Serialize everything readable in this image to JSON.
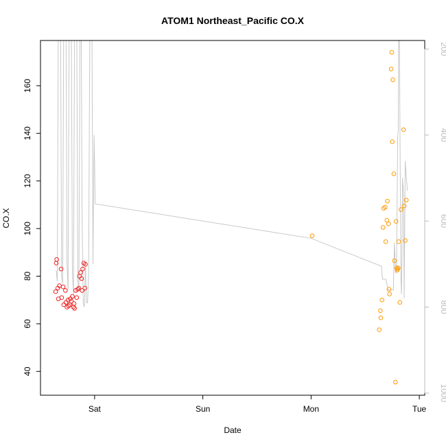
{
  "chart_data": {
    "type": "scatter",
    "title": "ATOM1 Northeast_Pacific CO.X",
    "xlabel": "Date",
    "ylabel": "CO.X",
    "xlim": [
      -0.5,
      3.05
    ],
    "ylim": [
      30,
      179
    ],
    "x_ticks": [
      {
        "value": 0,
        "label": "Sat"
      },
      {
        "value": 1,
        "label": "Sun"
      },
      {
        "value": 2,
        "label": "Mon"
      },
      {
        "value": 3,
        "label": "Tue"
      }
    ],
    "y_ticks": [
      40,
      60,
      80,
      100,
      120,
      140,
      160
    ],
    "secondary_axis": {
      "label": "",
      "ticks": [
        200,
        400,
        600,
        800,
        1000
      ],
      "range": [
        180,
        1005
      ],
      "reversed": true,
      "color": "#bbbbbb"
    },
    "colors": {
      "series1": "#ee2222",
      "series2": "#ff9900",
      "line": "#c8c8c8",
      "frame": "#000000"
    },
    "series": [
      {
        "color": "#ee2222",
        "points": [
          [
            -0.36,
            73.5
          ],
          [
            -0.355,
            85.5
          ],
          [
            -0.35,
            87
          ],
          [
            -0.34,
            75
          ],
          [
            -0.335,
            70.5
          ],
          [
            -0.325,
            76
          ],
          [
            -0.31,
            83
          ],
          [
            -0.305,
            71
          ],
          [
            -0.29,
            75.5
          ],
          [
            -0.285,
            68
          ],
          [
            -0.27,
            74
          ],
          [
            -0.265,
            69
          ],
          [
            -0.255,
            67
          ],
          [
            -0.245,
            70
          ],
          [
            -0.24,
            67.5
          ],
          [
            -0.23,
            68
          ],
          [
            -0.225,
            70.5
          ],
          [
            -0.215,
            69.5
          ],
          [
            -0.205,
            71.5
          ],
          [
            -0.195,
            67
          ],
          [
            -0.19,
            68.5
          ],
          [
            -0.185,
            66.5
          ],
          [
            -0.175,
            74
          ],
          [
            -0.165,
            71
          ],
          [
            -0.155,
            74.5
          ],
          [
            -0.145,
            75
          ],
          [
            -0.14,
            80
          ],
          [
            -0.13,
            81.5
          ],
          [
            -0.12,
            79
          ],
          [
            -0.115,
            74
          ],
          [
            -0.11,
            83
          ],
          [
            -0.1,
            85.5
          ],
          [
            -0.09,
            75
          ],
          [
            -0.085,
            85
          ]
        ]
      },
      {
        "color": "#ff9900",
        "points": [
          [
            2.01,
            97
          ],
          [
            2.63,
            57.5
          ],
          [
            2.64,
            65.5
          ],
          [
            2.645,
            62.5
          ],
          [
            2.655,
            70
          ],
          [
            2.665,
            100.5
          ],
          [
            2.67,
            108.5
          ],
          [
            2.685,
            109
          ],
          [
            2.69,
            94.5
          ],
          [
            2.7,
            103.5
          ],
          [
            2.705,
            111.5
          ],
          [
            2.715,
            102
          ],
          [
            2.72,
            74.5
          ],
          [
            2.725,
            72.5
          ],
          [
            2.74,
            167
          ],
          [
            2.745,
            174
          ],
          [
            2.75,
            136.5
          ],
          [
            2.755,
            162.5
          ],
          [
            2.765,
            123
          ],
          [
            2.77,
            86.5
          ],
          [
            2.78,
            35.5
          ],
          [
            2.785,
            103
          ],
          [
            2.79,
            83.5
          ],
          [
            2.795,
            82.5
          ],
          [
            2.8,
            83
          ],
          [
            2.805,
            83.5
          ],
          [
            2.81,
            94.5
          ],
          [
            2.82,
            69
          ],
          [
            2.83,
            108
          ],
          [
            2.855,
            141.5
          ],
          [
            2.86,
            109.5
          ],
          [
            2.87,
            95
          ],
          [
            2.88,
            112
          ]
        ]
      }
    ],
    "line_series": {
      "color": "#c8c8c8",
      "axis": "secondary",
      "points": [
        [
          -0.355,
          715
        ],
        [
          -0.345,
          740
        ],
        [
          -0.335,
          130
        ],
        [
          -0.325,
          90
        ],
        [
          -0.315,
          100
        ],
        [
          -0.305,
          730
        ],
        [
          -0.295,
          745
        ],
        [
          -0.285,
          120
        ],
        [
          -0.275,
          80
        ],
        [
          -0.265,
          90
        ],
        [
          -0.255,
          700
        ],
        [
          -0.245,
          760
        ],
        [
          -0.235,
          140
        ],
        [
          -0.225,
          90
        ],
        [
          -0.215,
          150
        ],
        [
          -0.205,
          720
        ],
        [
          -0.195,
          770
        ],
        [
          -0.185,
          130
        ],
        [
          -0.175,
          90
        ],
        [
          -0.165,
          130
        ],
        [
          -0.155,
          740
        ],
        [
          -0.145,
          760
        ],
        [
          -0.135,
          120
        ],
        [
          -0.125,
          90
        ],
        [
          -0.115,
          600
        ],
        [
          -0.105,
          790
        ],
        [
          -0.095,
          800
        ],
        [
          -0.085,
          700
        ],
        [
          -0.075,
          790
        ],
        [
          -0.065,
          790
        ],
        [
          -0.055,
          720
        ],
        [
          -0.045,
          180
        ],
        [
          -0.035,
          110
        ],
        [
          -0.025,
          120
        ],
        [
          -0.015,
          700
        ],
        [
          -0.005,
          400
        ],
        [
          0,
          470
        ],
        [
          0.005,
          560
        ],
        [
          2.0,
          640
        ],
        [
          2.6,
          700
        ],
        [
          2.65,
          705
        ],
        [
          2.66,
          735
        ],
        [
          2.69,
          735
        ],
        [
          2.7,
          745
        ],
        [
          2.71,
          760
        ],
        [
          2.74,
          760
        ],
        [
          2.76,
          760
        ],
        [
          2.77,
          650
        ],
        [
          2.78,
          720
        ],
        [
          2.79,
          715
        ],
        [
          2.8,
          400
        ],
        [
          2.805,
          390
        ],
        [
          2.81,
          100
        ],
        [
          2.815,
          130
        ],
        [
          2.83,
          730
        ],
        [
          2.835,
          770
        ],
        [
          2.84,
          680
        ],
        [
          2.845,
          500
        ],
        [
          2.85,
          520
        ],
        [
          2.855,
          540
        ],
        [
          2.86,
          780
        ],
        [
          2.87,
          460
        ],
        [
          2.88,
          500
        ],
        [
          2.89,
          530
        ]
      ]
    }
  }
}
